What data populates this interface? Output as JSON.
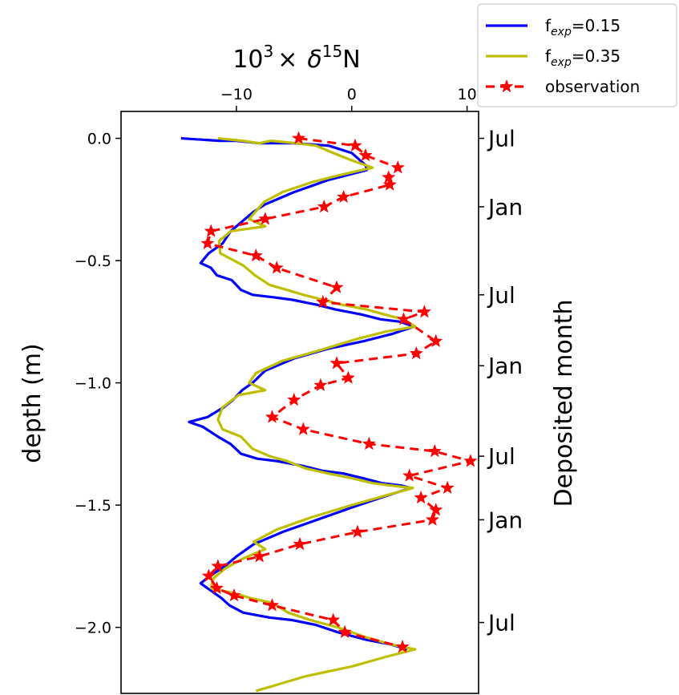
{
  "chart_data": {
    "type": "line",
    "top_axis_label": {
      "prefix": "10",
      "exponent": "3",
      "times": "×",
      "delta": "δ",
      "isotope_mass": "15",
      "element": "N"
    },
    "ylabel": "depth (m)",
    "right_label": "Deposited month",
    "xlim": [
      -20,
      11
    ],
    "ylim": [
      -2.27,
      0.11
    ],
    "x_ticks": [
      {
        "value": -10,
        "label": "−10"
      },
      {
        "value": 0,
        "label": "0"
      },
      {
        "value": 10,
        "label": "10"
      }
    ],
    "y_ticks": [
      {
        "value": 0.0,
        "label": "0.0"
      },
      {
        "value": -0.5,
        "label": "−0.5"
      },
      {
        "value": -1.0,
        "label": "−1.0"
      },
      {
        "value": -1.5,
        "label": "−1.5"
      },
      {
        "value": -2.0,
        "label": "−2.0"
      }
    ],
    "month_ticks": [
      {
        "depth": 0.0,
        "label": "Jul"
      },
      {
        "depth": -0.28,
        "label": "Jan"
      },
      {
        "depth": -0.64,
        "label": "Jul"
      },
      {
        "depth": -0.93,
        "label": "Jan"
      },
      {
        "depth": -1.3,
        "label": "Jul"
      },
      {
        "depth": -1.56,
        "label": "Jan"
      },
      {
        "depth": -1.98,
        "label": "Jul"
      }
    ],
    "legend_position": "top-right, outside axes",
    "legend": [
      {
        "label_main": "f",
        "label_sub": "exp",
        "label_tail": "=0.15",
        "color": "#0000ff",
        "style": "solid"
      },
      {
        "label_main": "f",
        "label_sub": "exp",
        "label_tail": "=0.35",
        "color": "#bfbf00",
        "style": "solid"
      },
      {
        "label_main": "observation",
        "label_sub": "",
        "label_tail": "",
        "color": "#ff0000",
        "style": "dashed-star"
      }
    ],
    "series": [
      {
        "color": "#0000ff",
        "style": "solid",
        "points": [
          [
            -14.8,
            0.0
          ],
          [
            -11.5,
            -0.01
          ],
          [
            -10,
            -0.01
          ],
          [
            -8,
            -0.02
          ],
          [
            -5,
            -0.02
          ],
          [
            -2,
            -0.03
          ],
          [
            0,
            -0.06
          ],
          [
            1.2,
            -0.11
          ],
          [
            1.3,
            -0.13
          ],
          [
            -2,
            -0.17
          ],
          [
            -5,
            -0.22
          ],
          [
            -7.5,
            -0.27
          ],
          [
            -8.5,
            -0.3
          ],
          [
            -9.5,
            -0.34
          ],
          [
            -10.5,
            -0.38
          ],
          [
            -11.2,
            -0.43
          ],
          [
            -12.4,
            -0.47
          ],
          [
            -13.1,
            -0.51
          ],
          [
            -12.2,
            -0.53
          ],
          [
            -11.7,
            -0.56
          ],
          [
            -10.4,
            -0.58
          ],
          [
            -9.6,
            -0.62
          ],
          [
            -8.6,
            -0.64
          ],
          [
            -6.8,
            -0.65
          ],
          [
            -5.2,
            -0.66
          ],
          [
            -3.1,
            -0.68
          ],
          [
            -1.4,
            -0.7
          ],
          [
            0.8,
            -0.72
          ],
          [
            2.5,
            -0.74
          ],
          [
            4.2,
            -0.75
          ],
          [
            5.4,
            -0.77
          ],
          [
            3.5,
            -0.8
          ],
          [
            1,
            -0.83
          ],
          [
            -2,
            -0.86
          ],
          [
            -5,
            -0.9
          ],
          [
            -7.5,
            -0.95
          ],
          [
            -8.6,
            -1.0
          ],
          [
            -9.5,
            -1.03
          ],
          [
            -10.3,
            -1.07
          ],
          [
            -11.1,
            -1.1
          ],
          [
            -12.5,
            -1.14
          ],
          [
            -14.1,
            -1.16
          ],
          [
            -12.9,
            -1.18
          ],
          [
            -11.6,
            -1.22
          ],
          [
            -10.5,
            -1.25
          ],
          [
            -9.6,
            -1.29
          ],
          [
            -8.2,
            -1.31
          ],
          [
            -6.5,
            -1.32
          ],
          [
            -4.2,
            -1.34
          ],
          [
            -2.5,
            -1.36
          ],
          [
            -0.8,
            -1.37
          ],
          [
            1.0,
            -1.39
          ],
          [
            2.6,
            -1.41
          ],
          [
            4.3,
            -1.42
          ],
          [
            5.1,
            -1.43
          ],
          [
            2.5,
            -1.47
          ],
          [
            0,
            -1.51
          ],
          [
            -3,
            -1.56
          ],
          [
            -6,
            -1.61
          ],
          [
            -8.5,
            -1.66
          ],
          [
            -10,
            -1.71
          ],
          [
            -11,
            -1.75
          ],
          [
            -12.3,
            -1.79
          ],
          [
            -13.1,
            -1.82
          ],
          [
            -12.2,
            -1.85
          ],
          [
            -11.3,
            -1.88
          ],
          [
            -10.6,
            -1.91
          ],
          [
            -9.4,
            -1.94
          ],
          [
            -7.1,
            -1.96
          ],
          [
            -5.2,
            -1.97
          ],
          [
            -3.1,
            -1.99
          ],
          [
            -1.2,
            -2.02
          ],
          [
            1.2,
            -2.05
          ],
          [
            3.4,
            -2.07
          ],
          [
            4.8,
            -2.09
          ]
        ]
      },
      {
        "color": "#bfbf00",
        "style": "solid",
        "points": [
          [
            -11.6,
            0.0
          ],
          [
            -9.5,
            -0.01
          ],
          [
            -8.0,
            -0.02
          ],
          [
            -7,
            -0.01
          ],
          [
            -4.8,
            -0.02
          ],
          [
            -3.1,
            -0.03
          ],
          [
            -1.6,
            -0.06
          ],
          [
            0,
            -0.09
          ],
          [
            1.2,
            -0.11
          ],
          [
            1.8,
            -0.12
          ],
          [
            -1,
            -0.15
          ],
          [
            -3.5,
            -0.18
          ],
          [
            -6,
            -0.22
          ],
          [
            -7.6,
            -0.26
          ],
          [
            -8.9,
            -0.33
          ],
          [
            -7.5,
            -0.36
          ],
          [
            -10.5,
            -0.38
          ],
          [
            -11.5,
            -0.42
          ],
          [
            -11.4,
            -0.47
          ],
          [
            -10.6,
            -0.49
          ],
          [
            -9.4,
            -0.52
          ],
          [
            -8.4,
            -0.56
          ],
          [
            -7.1,
            -0.6
          ],
          [
            -5.6,
            -0.62
          ],
          [
            -4.2,
            -0.64
          ],
          [
            -2.5,
            -0.66
          ],
          [
            -0.9,
            -0.68
          ],
          [
            1.3,
            -0.7
          ],
          [
            2.8,
            -0.72
          ],
          [
            4.5,
            -0.74
          ],
          [
            5.5,
            -0.77
          ],
          [
            3,
            -0.79
          ],
          [
            0.5,
            -0.82
          ],
          [
            -3,
            -0.87
          ],
          [
            -6,
            -0.91
          ],
          [
            -8.3,
            -0.96
          ],
          [
            -8.9,
            -1.0
          ],
          [
            -7.5,
            -1.03
          ],
          [
            -9.8,
            -1.05
          ],
          [
            -11.2,
            -1.1
          ],
          [
            -11.6,
            -1.15
          ],
          [
            -11.2,
            -1.19
          ],
          [
            -9.6,
            -1.22
          ],
          [
            -8.6,
            -1.27
          ],
          [
            -7.1,
            -1.3
          ],
          [
            -5.6,
            -1.32
          ],
          [
            -4.0,
            -1.35
          ],
          [
            -2.1,
            -1.37
          ],
          [
            0.0,
            -1.39
          ],
          [
            1.8,
            -1.41
          ],
          [
            3.4,
            -1.42
          ],
          [
            5.3,
            -1.43
          ],
          [
            3,
            -1.46
          ],
          [
            0,
            -1.5
          ],
          [
            -3.5,
            -1.55
          ],
          [
            -6.5,
            -1.6
          ],
          [
            -8.5,
            -1.65
          ],
          [
            -7.5,
            -1.68
          ],
          [
            -9.5,
            -1.72
          ],
          [
            -11,
            -1.76
          ],
          [
            -12.0,
            -1.8
          ],
          [
            -12.2,
            -1.84
          ],
          [
            -10.2,
            -1.86
          ],
          [
            -8.8,
            -1.88
          ],
          [
            -6.9,
            -1.9
          ],
          [
            -5.5,
            -1.94
          ],
          [
            -3.6,
            -1.97
          ],
          [
            -1.2,
            -2.0
          ],
          [
            1.2,
            -2.04
          ],
          [
            3.4,
            -2.07
          ],
          [
            5.5,
            -2.09
          ],
          [
            3,
            -2.12
          ],
          [
            0,
            -2.16
          ],
          [
            -4,
            -2.2
          ],
          [
            -8.3,
            -2.26
          ]
        ]
      },
      {
        "color": "#ff0000",
        "style": "dashed-star",
        "points": [
          [
            -4.6,
            0.0
          ],
          [
            0.3,
            -0.03
          ],
          [
            1.2,
            -0.07
          ],
          [
            4.0,
            -0.12
          ],
          [
            3.2,
            -0.16
          ],
          [
            3.3,
            -0.19
          ],
          [
            -0.7,
            -0.24
          ],
          [
            -2.4,
            -0.28
          ],
          [
            -7.5,
            -0.33
          ],
          [
            -12.2,
            -0.38
          ],
          [
            -12.5,
            -0.43
          ],
          [
            -8.3,
            -0.48
          ],
          [
            -6.5,
            -0.53
          ],
          [
            -1.3,
            -0.61
          ],
          [
            -2.5,
            -0.67
          ],
          [
            6.3,
            -0.71
          ],
          [
            4.5,
            -0.74
          ],
          [
            7.3,
            -0.83
          ],
          [
            5.6,
            -0.88
          ],
          [
            -1.3,
            -0.92
          ],
          [
            -0.3,
            -0.98
          ],
          [
            -2.7,
            -1.01
          ],
          [
            -5.0,
            -1.07
          ],
          [
            -6.9,
            -1.14
          ],
          [
            -4.2,
            -1.19
          ],
          [
            1.5,
            -1.25
          ],
          [
            7.2,
            -1.28
          ],
          [
            10.3,
            -1.32
          ],
          [
            5.0,
            -1.38
          ],
          [
            8.3,
            -1.43
          ],
          [
            6.0,
            -1.47
          ],
          [
            7.3,
            -1.52
          ],
          [
            7.0,
            -1.56
          ],
          [
            0.5,
            -1.61
          ],
          [
            -4.5,
            -1.66
          ],
          [
            -8.0,
            -1.71
          ],
          [
            -11.6,
            -1.75
          ],
          [
            -12.4,
            -1.79
          ],
          [
            -11.7,
            -1.84
          ],
          [
            -10.2,
            -1.87
          ],
          [
            -6.9,
            -1.91
          ],
          [
            -1.6,
            -1.97
          ],
          [
            -0.6,
            -2.02
          ],
          [
            4.4,
            -2.08
          ]
        ]
      }
    ]
  }
}
